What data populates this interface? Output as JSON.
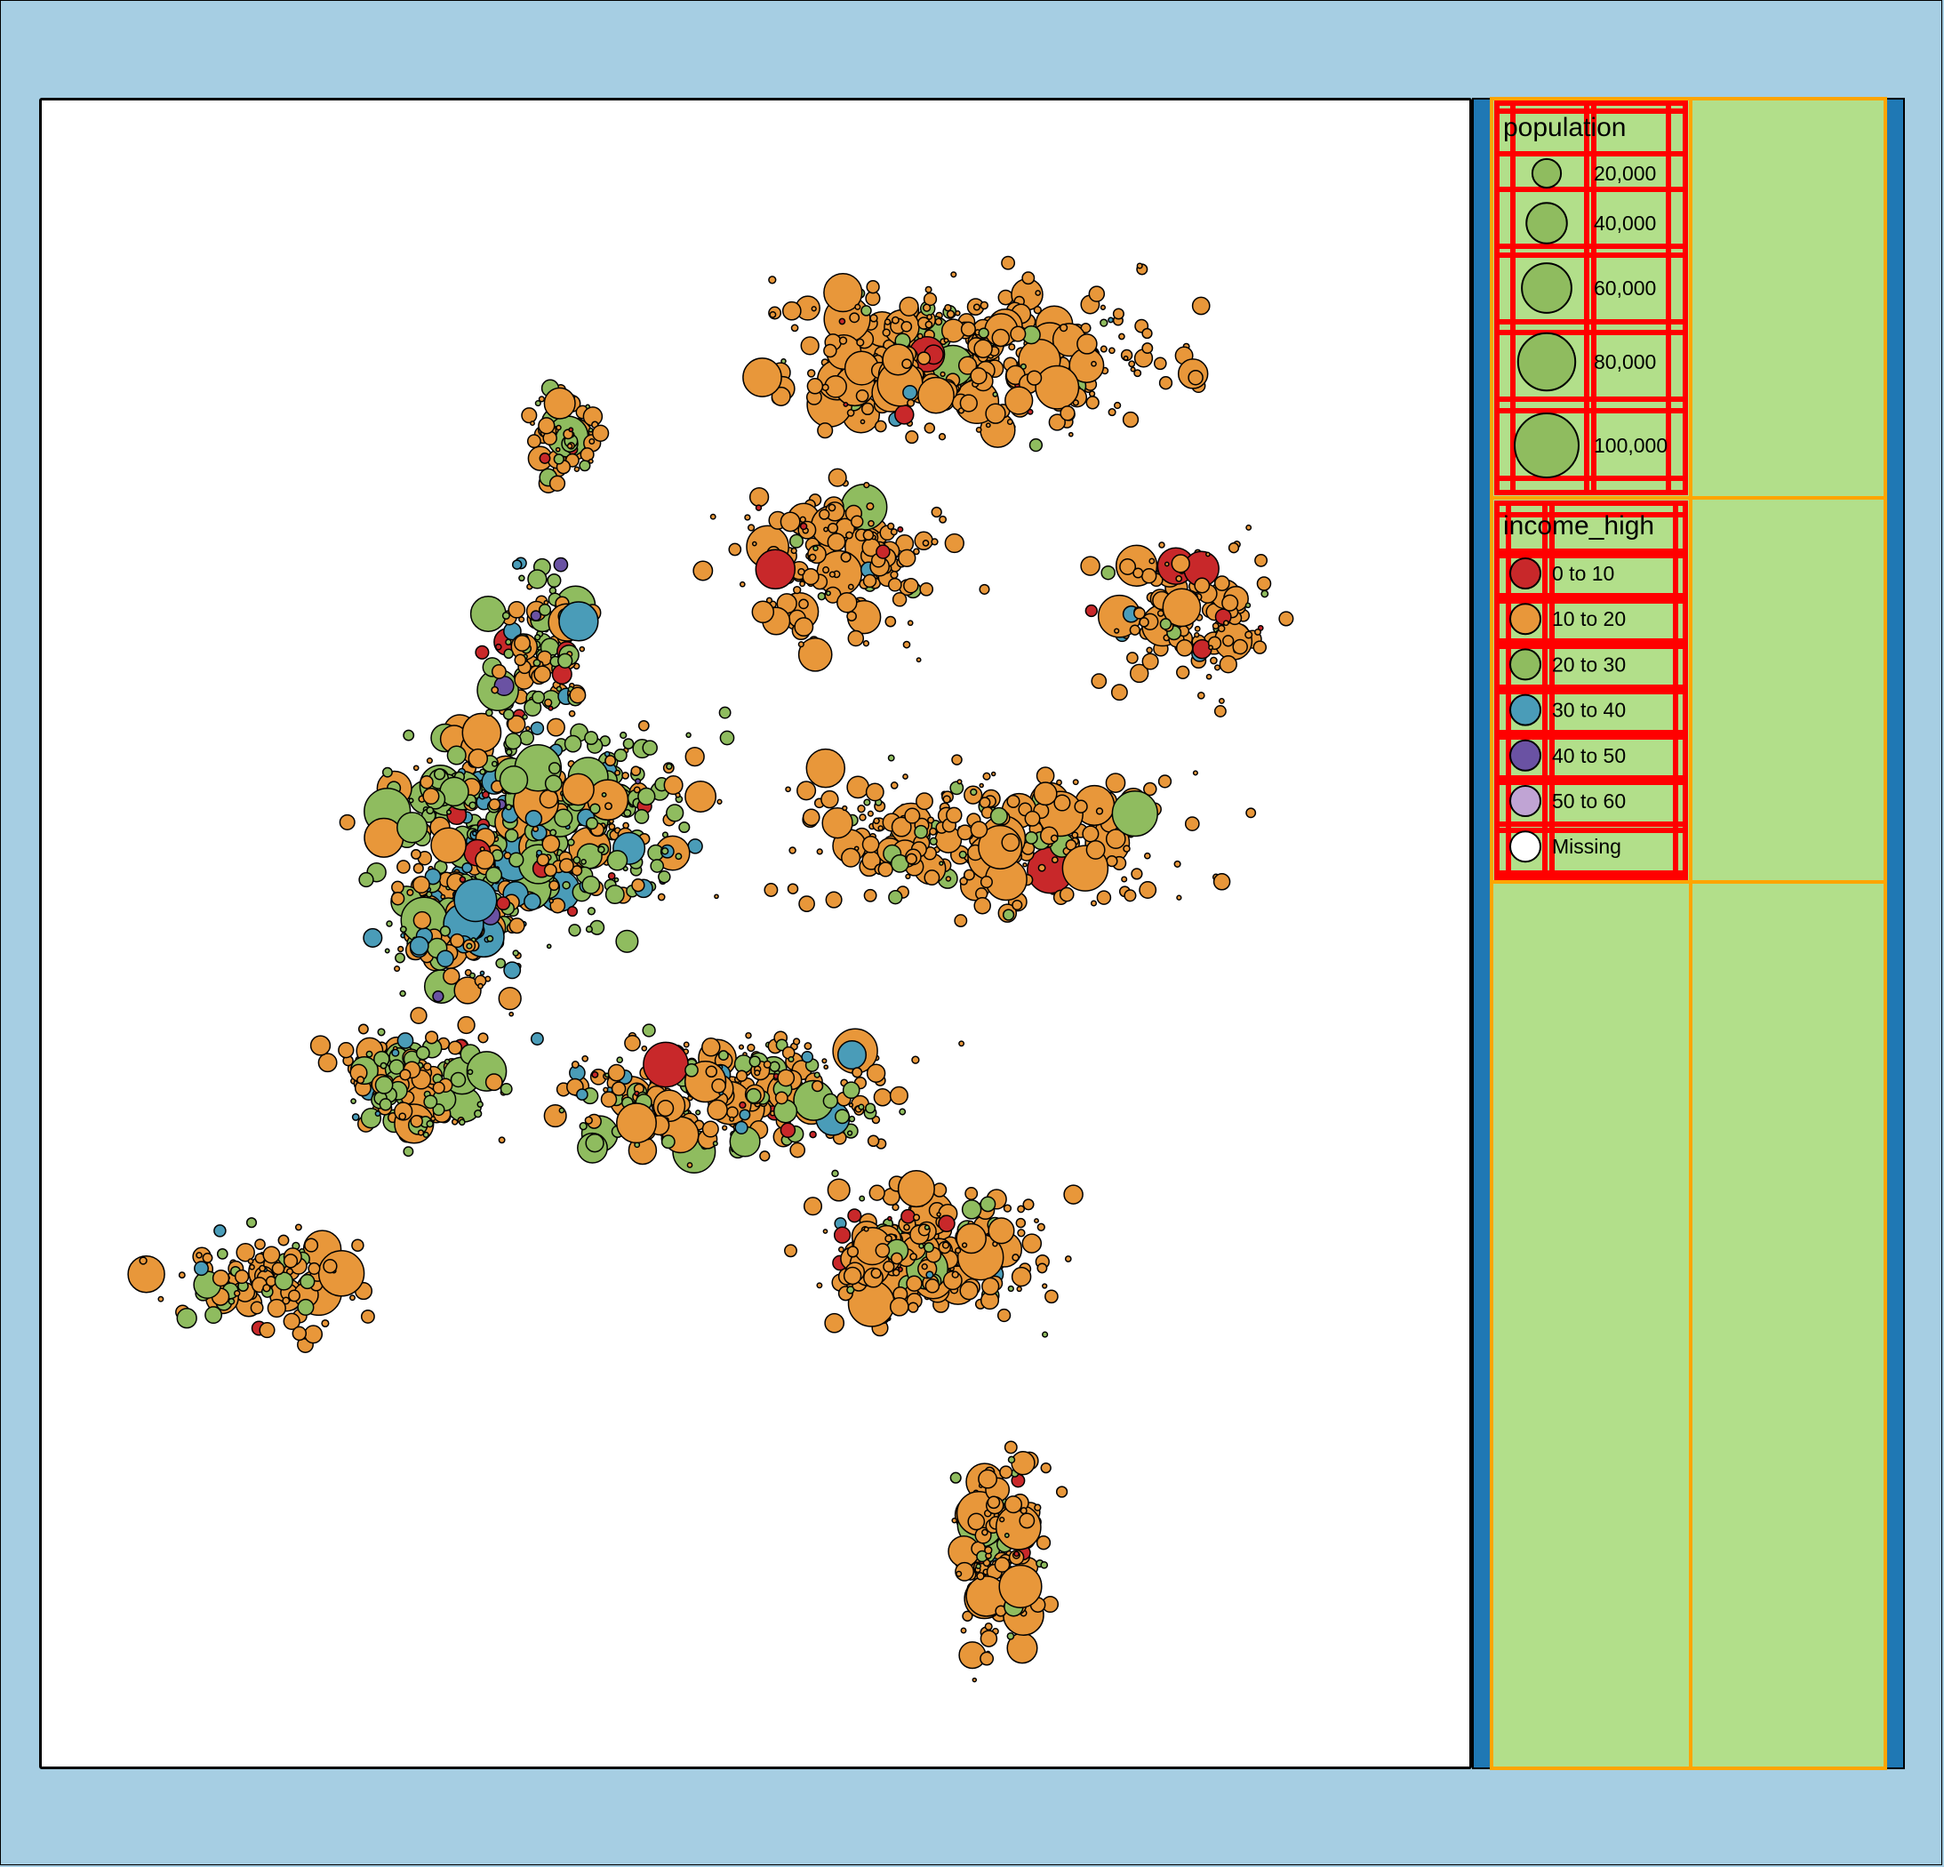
{
  "legend": {
    "size_title": "population",
    "size_items": [
      {
        "label": "20,000",
        "value": 20000
      },
      {
        "label": "40,000",
        "value": 40000
      },
      {
        "label": "60,000",
        "value": 60000
      },
      {
        "label": "80,000",
        "value": 80000
      },
      {
        "label": "100,000",
        "value": 100000
      }
    ],
    "size_symbol_color": "#8fbc5f",
    "color_title": "income_high",
    "color_items": [
      {
        "label": "0 to 10",
        "color": "#c8282a"
      },
      {
        "label": "10 to 20",
        "color": "#e8973a"
      },
      {
        "label": "20 to 30",
        "color": "#8fbc5f"
      },
      {
        "label": "30 to 40",
        "color": "#4a9cb8"
      },
      {
        "label": "40 to 50",
        "color": "#6a52a3"
      },
      {
        "label": "50 to 60",
        "color": "#c0a4d4"
      },
      {
        "label": "Missing",
        "color": "#ffffff"
      }
    ]
  },
  "colors": {
    "background": "#a6cee3",
    "map_panel": "#ffffff",
    "legend_band": "#1f78b4",
    "legend_cell": "#b2df8a",
    "legend_frame": "#ffa500",
    "legend_grid": "#ff0000"
  }
}
